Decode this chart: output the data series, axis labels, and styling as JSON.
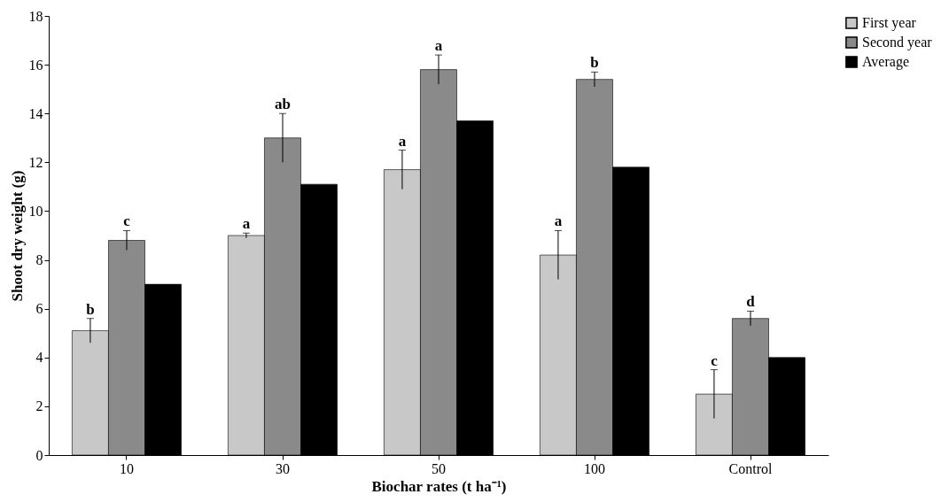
{
  "chart_data": {
    "type": "bar",
    "xlabel": "Biochar rates (t ha⁻¹)",
    "ylabel": "Shoot dry weight (g)",
    "categories": [
      "10",
      "30",
      "50",
      "100",
      "Control"
    ],
    "series": [
      {
        "name": "First year",
        "color": "#c8c8c8",
        "values": [
          5.1,
          9.0,
          11.7,
          8.2,
          2.5
        ],
        "errors": [
          0.5,
          0.1,
          0.8,
          1.0,
          1.0
        ],
        "value_labels": [
          "b",
          "a",
          "a",
          "a",
          "c"
        ]
      },
      {
        "name": "Second year",
        "color": "#8a8a8a",
        "values": [
          8.8,
          13.0,
          15.8,
          15.4,
          5.6
        ],
        "errors": [
          0.4,
          1.0,
          0.6,
          0.3,
          0.3
        ],
        "value_labels": [
          "c",
          "ab",
          "a",
          "b",
          "d"
        ]
      },
      {
        "name": "Average",
        "color": "#000000",
        "values": [
          7.0,
          11.1,
          13.7,
          11.8,
          4.0
        ]
      }
    ],
    "ylim": [
      0,
      18
    ],
    "yticks": [
      0,
      2,
      4,
      6,
      8,
      10,
      12,
      14,
      16,
      18
    ],
    "grid": false,
    "legend": "right"
  }
}
